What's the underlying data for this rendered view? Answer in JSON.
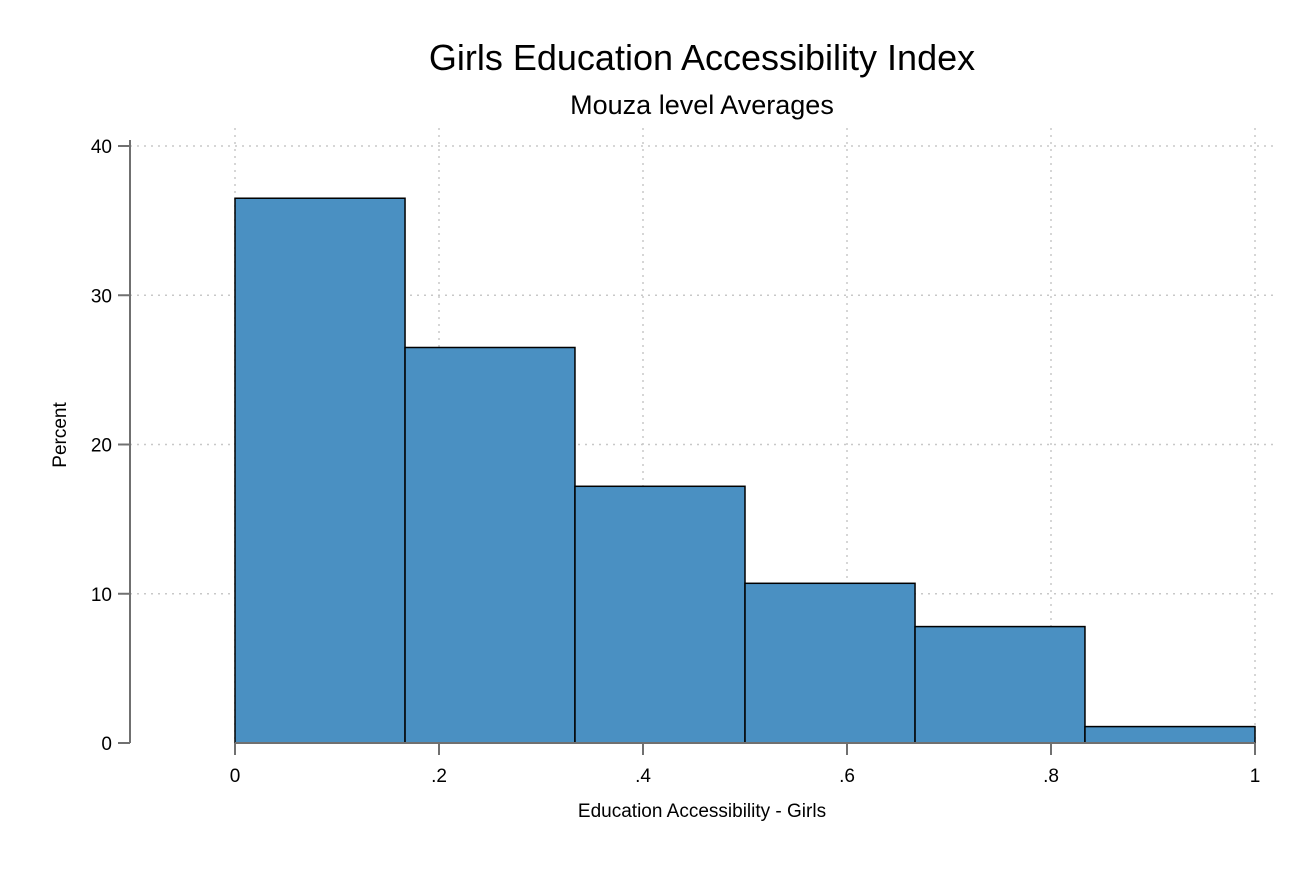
{
  "chart_data": {
    "type": "bar",
    "title": "Girls Education Accessibility Index",
    "subtitle": "Mouza level Averages",
    "xlabel": "Education Accessibility - Girls",
    "ylabel": "Percent",
    "xlim": [
      -0.1,
      1.02
    ],
    "ylim": [
      0,
      40
    ],
    "x_ticks": [
      {
        "value": 0,
        "label": "0"
      },
      {
        "value": 0.2,
        "label": ".2"
      },
      {
        "value": 0.4,
        "label": ".4"
      },
      {
        "value": 0.6,
        "label": ".6"
      },
      {
        "value": 0.8,
        "label": ".8"
      },
      {
        "value": 1,
        "label": "1"
      }
    ],
    "y_ticks": [
      {
        "value": 0,
        "label": "0"
      },
      {
        "value": 10,
        "label": "10"
      },
      {
        "value": 20,
        "label": "20"
      },
      {
        "value": 30,
        "label": "30"
      },
      {
        "value": 40,
        "label": "40"
      }
    ],
    "bins": [
      {
        "x0": 0.0,
        "x1": 0.1667,
        "value": 36.5
      },
      {
        "x0": 0.1667,
        "x1": 0.3333,
        "value": 26.5
      },
      {
        "x0": 0.3333,
        "x1": 0.5,
        "value": 17.2
      },
      {
        "x0": 0.5,
        "x1": 0.6667,
        "value": 10.7
      },
      {
        "x0": 0.6667,
        "x1": 0.8333,
        "value": 7.8
      },
      {
        "x0": 0.8333,
        "x1": 1.0,
        "value": 1.1
      }
    ],
    "grid": true,
    "bar_color": "#4a90c2",
    "edge_color": "#000000"
  }
}
